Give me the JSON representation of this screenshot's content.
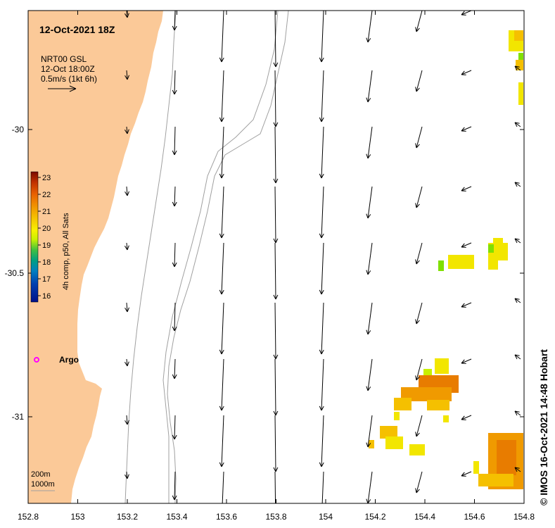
{
  "title": "12-Oct-2021 18Z",
  "vector_legend": {
    "line1": "NRT00 GSL",
    "line2": "12-Oct 18:00Z",
    "line3": "0.5m/s (1kt 6h)"
  },
  "colorbar": {
    "label": "4h comp, p50, All Sats",
    "ticks": [
      "23",
      "22",
      "21",
      "20",
      "19",
      "18",
      "17",
      "16"
    ],
    "colors": [
      "#7a0a00",
      "#c03000",
      "#e86000",
      "#f08c00",
      "#f5c000",
      "#f8f000",
      "#c8f000",
      "#40c040",
      "#00a080",
      "#0080c0",
      "#0040b0",
      "#00108a"
    ]
  },
  "marker": {
    "label": "Argo",
    "color": "#ff00ff"
  },
  "depth_legend": {
    "line1": "200m",
    "line2": "1000m"
  },
  "x_axis": {
    "ticks": [
      "152.8",
      "153",
      "153.2",
      "153.4",
      "153.6",
      "153.8",
      "154",
      "154.2",
      "154.4",
      "154.6",
      "154.8"
    ]
  },
  "y_axis": {
    "ticks": [
      "-30",
      "-30.5",
      "-31"
    ]
  },
  "credit": "© IMOS 16-Oct-2021 14:48 Hobart",
  "colors": {
    "land": "#fbc998",
    "contour": "#a0a0a0",
    "sst_yellow": "#f2e600",
    "sst_gold": "#f5c000",
    "sst_orange": "#f09a00",
    "sst_dark_orange": "#e87c00",
    "sst_green": "#80e000"
  }
}
